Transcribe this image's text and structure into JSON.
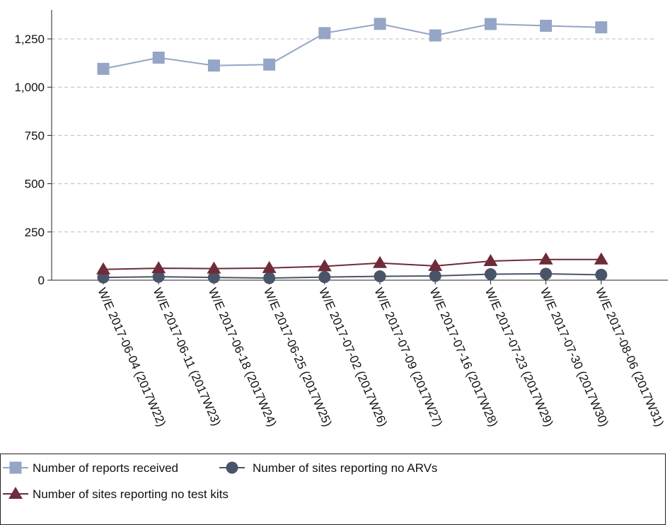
{
  "chart_data": {
    "type": "line",
    "categories": [
      "W/E 2017-06-04 (2017W22)",
      "W/E 2017-06-11 (2017W23)",
      "W/E 2017-06-18 (2017W24)",
      "W/E 2017-06-25 (2017W25)",
      "W/E 2017-07-02 (2017W26)",
      "W/E 2017-07-09 (2017W27)",
      "W/E 2017-07-16 (2017W28)",
      "W/E 2017-07-23 (2017W29)",
      "W/E 2017-07-30 (2017W30)",
      "W/E 2017-08-06 (2017W31)"
    ],
    "series": [
      {
        "name": "Number of reports received",
        "values": [
          1095,
          1153,
          1112,
          1117,
          1280,
          1328,
          1268,
          1327,
          1318,
          1310
        ],
        "color": "#94a5c6",
        "marker": "square"
      },
      {
        "name": "Number of sites reporting no ARVs",
        "values": [
          14,
          18,
          14,
          11,
          16,
          20,
          22,
          31,
          33,
          28
        ],
        "color": "#4a5469",
        "marker": "circle"
      },
      {
        "name": "Number of sites reporting no test kits",
        "values": [
          56,
          62,
          60,
          63,
          72,
          89,
          74,
          99,
          107,
          107
        ],
        "color": "#6e2b3a",
        "marker": "triangle"
      }
    ],
    "y_ticks": [
      "0",
      "250",
      "500",
      "750",
      "1,000",
      "1,250"
    ],
    "y_tick_values": [
      0,
      250,
      500,
      750,
      1000,
      1250
    ],
    "ylim": [
      0,
      1400
    ],
    "grid": "horizontal dashed",
    "legend_position": "bottom",
    "title": "",
    "xlabel": "",
    "ylabel": ""
  }
}
